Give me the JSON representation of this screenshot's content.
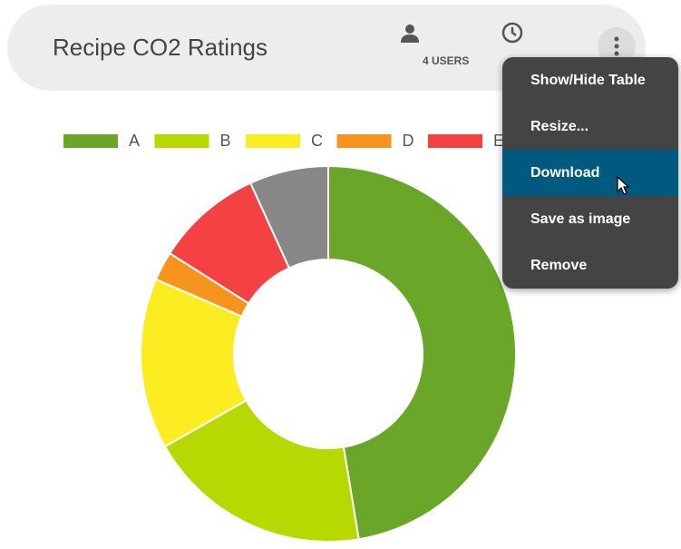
{
  "header": {
    "title": "Recipe CO2 Ratings",
    "users": "4 USERS"
  },
  "menu": {
    "items": [
      "Show/Hide Table",
      "Resize...",
      "Download",
      "Save as image",
      "Remove"
    ]
  },
  "chart_data": {
    "type": "doughnut",
    "categories": [
      "A",
      "B",
      "C",
      "D",
      "E",
      null
    ],
    "values": [
      47.4,
      19.4,
      14.7,
      2.5,
      9.2,
      6.8
    ],
    "colors": [
      "#6aa628",
      "#b7d800",
      "#fcec22",
      "#f7941d",
      "#f44141",
      "#888888"
    ],
    "legend": "top"
  }
}
